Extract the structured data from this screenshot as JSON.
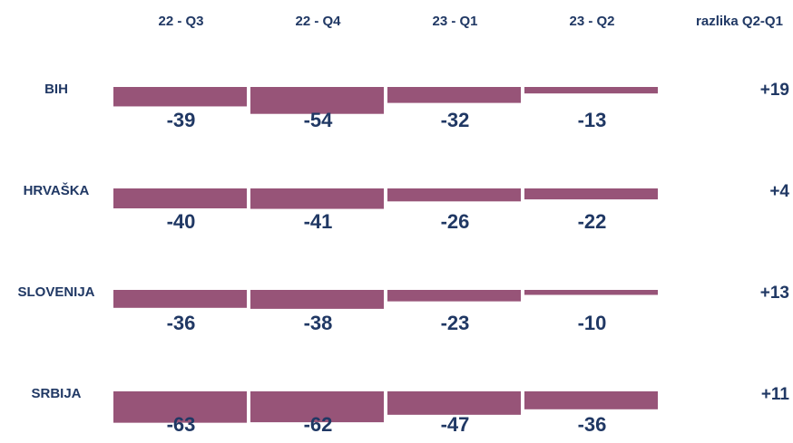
{
  "chart_data": {
    "type": "bar",
    "categories": [
      "22 - Q3",
      "22 - Q4",
      "23 - Q1",
      "23 - Q2"
    ],
    "difference_header": "razlika Q2-Q1",
    "series": [
      {
        "name": "BIH",
        "color": "#975478",
        "values": [
          -39,
          -54,
          -32,
          -13
        ],
        "difference": "+19"
      },
      {
        "name": "HRVAŠKA",
        "color": "#975478",
        "values": [
          -40,
          -41,
          -26,
          -22
        ],
        "difference": "+4"
      },
      {
        "name": "SLOVENIJA",
        "color": "#975478",
        "values": [
          -36,
          -38,
          -23,
          -10
        ],
        "difference": "+13"
      },
      {
        "name": "SRBIJA",
        "color": "#975478",
        "values": [
          -63,
          -62,
          -47,
          -36
        ],
        "difference": "+11"
      }
    ]
  }
}
